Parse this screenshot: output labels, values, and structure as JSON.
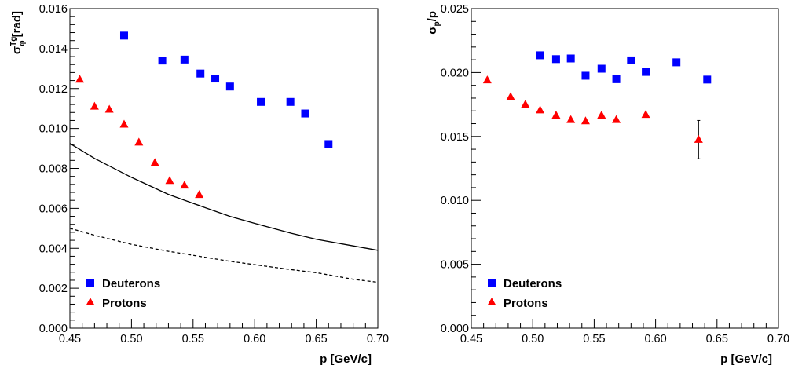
{
  "chart_data": [
    {
      "type": "scatter",
      "xlabel": "p [GeV/c]",
      "ylabel": {
        "main": "σ",
        "sub": "φ",
        "sup": "Tg",
        "unit": " [rad]"
      },
      "xlim": [
        0.45,
        0.7
      ],
      "ylim": [
        0.0,
        0.016
      ],
      "xticks": [
        "0.45",
        "0.50",
        "0.55",
        "0.60",
        "0.65",
        "0.70"
      ],
      "yticks": [
        "0.000",
        "0.002",
        "0.004",
        "0.006",
        "0.008",
        "0.010",
        "0.012",
        "0.014",
        "0.016"
      ],
      "legend_position": "bottom-left",
      "grid": false,
      "series": [
        {
          "name": "Deuterons",
          "marker": "square",
          "color": "#0000ff",
          "x": [
            0.494,
            0.525,
            0.543,
            0.556,
            0.568,
            0.58,
            0.605,
            0.629,
            0.641,
            0.66
          ],
          "y": [
            0.01465,
            0.0134,
            0.01345,
            0.01275,
            0.0125,
            0.0121,
            0.01133,
            0.01133,
            0.01075,
            0.00922
          ]
        },
        {
          "name": "Protons",
          "marker": "triangle",
          "color": "#ff0000",
          "x": [
            0.458,
            0.47,
            0.482,
            0.494,
            0.506,
            0.519,
            0.531,
            0.543,
            0.555
          ],
          "y": [
            0.01245,
            0.0111,
            0.01095,
            0.0102,
            0.0093,
            0.00828,
            0.00738,
            0.00715,
            0.00668
          ]
        }
      ],
      "curves": [
        {
          "style": "solid",
          "x": [
            0.45,
            0.47,
            0.5,
            0.53,
            0.55,
            0.58,
            0.6,
            0.63,
            0.65,
            0.68,
            0.7
          ],
          "y": [
            0.00925,
            0.0085,
            0.00755,
            0.0067,
            0.00625,
            0.0056,
            0.00525,
            0.00475,
            0.00445,
            0.00412,
            0.0039
          ]
        },
        {
          "style": "dashed",
          "x": [
            0.45,
            0.47,
            0.5,
            0.53,
            0.55,
            0.58,
            0.6,
            0.63,
            0.65,
            0.68,
            0.7
          ],
          "y": [
            0.005,
            0.00465,
            0.0042,
            0.00385,
            0.00365,
            0.00335,
            0.00318,
            0.00293,
            0.00278,
            0.00245,
            0.0023
          ]
        }
      ]
    },
    {
      "type": "scatter",
      "xlabel": "p [GeV/c]",
      "ylabel": {
        "main": "σ",
        "sub": "p",
        "sup": "",
        "unit": "/p"
      },
      "xlim": [
        0.45,
        0.7
      ],
      "ylim": [
        0.0,
        0.025
      ],
      "xticks": [
        "0.45",
        "0.50",
        "0.55",
        "0.60",
        "0.65",
        "0.70"
      ],
      "yticks": [
        "0.000",
        "0.005",
        "0.010",
        "0.015",
        "0.020",
        "0.025"
      ],
      "legend_position": "bottom-left",
      "grid": false,
      "series": [
        {
          "name": "Deuterons",
          "marker": "square",
          "color": "#0000ff",
          "x": [
            0.506,
            0.519,
            0.531,
            0.543,
            0.556,
            0.568,
            0.58,
            0.592,
            0.617,
            0.642
          ],
          "y": [
            0.02135,
            0.02105,
            0.0211,
            0.01975,
            0.0203,
            0.01948,
            0.02095,
            0.02005,
            0.0208,
            0.01945
          ]
        },
        {
          "name": "Protons",
          "marker": "triangle",
          "color": "#ff0000",
          "x": [
            0.463,
            0.482,
            0.494,
            0.506,
            0.519,
            0.531,
            0.543,
            0.556,
            0.568,
            0.592,
            0.635
          ],
          "y": [
            0.0194,
            0.0181,
            0.0175,
            0.01705,
            0.01665,
            0.0163,
            0.0162,
            0.01665,
            0.0163,
            0.0167,
            0.01475
          ],
          "errors": [
            0,
            0,
            0,
            0,
            0,
            0,
            0,
            0,
            0,
            0,
            0.0015
          ]
        }
      ]
    }
  ]
}
